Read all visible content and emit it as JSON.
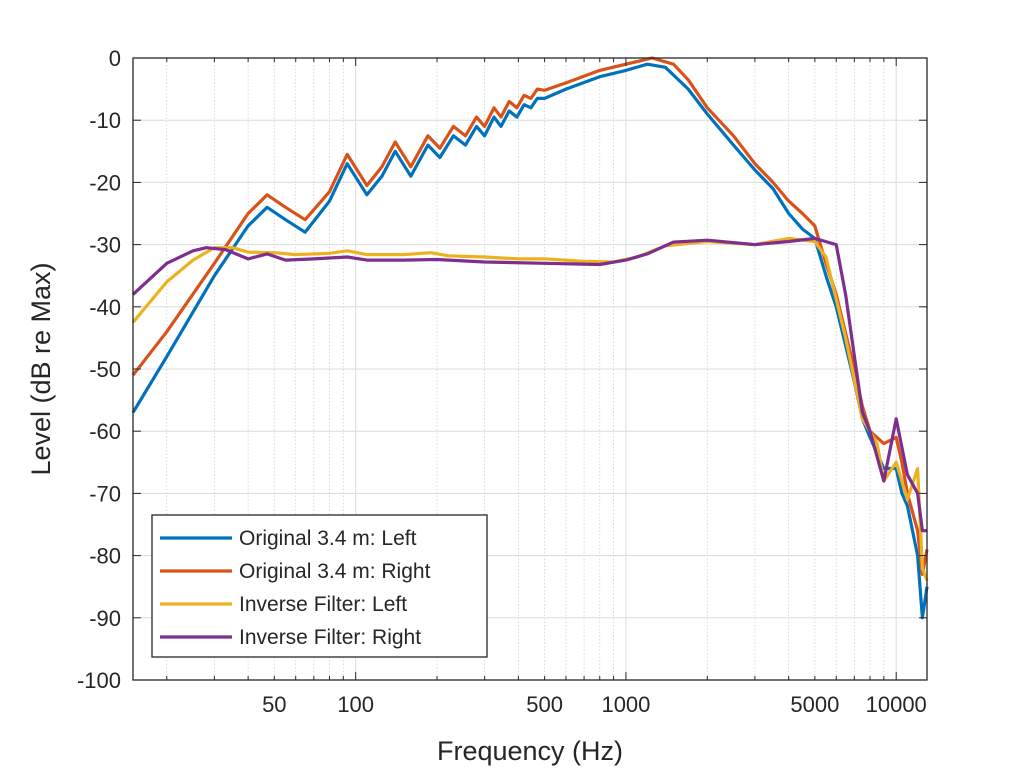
{
  "chart_data": {
    "type": "line",
    "title": "",
    "xlabel": "Frequency (Hz)",
    "ylabel": "Level (dB re Max)",
    "xscale": "log",
    "xlim": [
      15,
      13000
    ],
    "ylim": [
      -100,
      0
    ],
    "xticks": [
      50,
      100,
      500,
      1000,
      5000,
      10000
    ],
    "xtick_labels": [
      "50",
      "100",
      "500",
      "1000",
      "5000",
      "10000"
    ],
    "yticks": [
      0,
      -10,
      -20,
      -30,
      -40,
      -50,
      -60,
      -70,
      -80,
      -90,
      -100
    ],
    "ytick_labels": [
      "0",
      "-10",
      "-20",
      "-30",
      "-40",
      "-50",
      "-60",
      "-70",
      "-80",
      "-90",
      "-100"
    ],
    "grid": true,
    "legend_placement": "bottom-left",
    "series": [
      {
        "name": "Original 3.4 m: Left",
        "color": "#0072BD",
        "points": [
          [
            15,
            -57
          ],
          [
            20,
            -48
          ],
          [
            30,
            -35
          ],
          [
            40,
            -27
          ],
          [
            47,
            -24
          ],
          [
            55,
            -26
          ],
          [
            65,
            -28
          ],
          [
            80,
            -23
          ],
          [
            93,
            -17
          ],
          [
            110,
            -22
          ],
          [
            125,
            -19
          ],
          [
            140,
            -15
          ],
          [
            160,
            -19
          ],
          [
            185,
            -14
          ],
          [
            205,
            -16
          ],
          [
            230,
            -12.5
          ],
          [
            255,
            -14
          ],
          [
            280,
            -11
          ],
          [
            300,
            -12.5
          ],
          [
            325,
            -9.5
          ],
          [
            345,
            -11
          ],
          [
            370,
            -8.5
          ],
          [
            395,
            -9.5
          ],
          [
            420,
            -7.5
          ],
          [
            445,
            -8
          ],
          [
            470,
            -6.5
          ],
          [
            500,
            -6.5
          ],
          [
            600,
            -5
          ],
          [
            800,
            -3
          ],
          [
            1000,
            -2
          ],
          [
            1200,
            -1
          ],
          [
            1400,
            -1.5
          ],
          [
            1700,
            -5
          ],
          [
            2000,
            -9
          ],
          [
            2500,
            -14
          ],
          [
            3000,
            -18
          ],
          [
            3500,
            -21
          ],
          [
            4000,
            -25
          ],
          [
            4500,
            -27.5
          ],
          [
            5000,
            -29
          ],
          [
            5500,
            -35
          ],
          [
            6000,
            -40
          ],
          [
            7000,
            -52
          ],
          [
            7500,
            -58
          ],
          [
            8000,
            -61
          ],
          [
            9000,
            -66
          ],
          [
            10000,
            -66
          ],
          [
            10500,
            -70
          ],
          [
            11000,
            -72
          ],
          [
            12000,
            -80
          ],
          [
            12500,
            -90
          ],
          [
            13000,
            -85
          ]
        ]
      },
      {
        "name": "Original 3.4 m: Right",
        "color": "#D95319",
        "points": [
          [
            15,
            -51
          ],
          [
            20,
            -44
          ],
          [
            30,
            -33
          ],
          [
            40,
            -25
          ],
          [
            47,
            -22
          ],
          [
            55,
            -24
          ],
          [
            65,
            -26
          ],
          [
            80,
            -21.5
          ],
          [
            93,
            -15.5
          ],
          [
            110,
            -20.5
          ],
          [
            125,
            -17.5
          ],
          [
            140,
            -13.5
          ],
          [
            160,
            -17.5
          ],
          [
            185,
            -12.5
          ],
          [
            205,
            -14.5
          ],
          [
            230,
            -11
          ],
          [
            255,
            -12.5
          ],
          [
            280,
            -9.5
          ],
          [
            300,
            -11
          ],
          [
            325,
            -8
          ],
          [
            345,
            -9.5
          ],
          [
            370,
            -7
          ],
          [
            395,
            -8
          ],
          [
            420,
            -6
          ],
          [
            445,
            -6.5
          ],
          [
            470,
            -5
          ],
          [
            500,
            -5.2
          ],
          [
            600,
            -4
          ],
          [
            800,
            -2
          ],
          [
            1000,
            -1
          ],
          [
            1250,
            0
          ],
          [
            1500,
            -1
          ],
          [
            1700,
            -3.5
          ],
          [
            2000,
            -8
          ],
          [
            2500,
            -12.5
          ],
          [
            3000,
            -17
          ],
          [
            3500,
            -20
          ],
          [
            4000,
            -23
          ],
          [
            4500,
            -25
          ],
          [
            5000,
            -27
          ],
          [
            5500,
            -33
          ],
          [
            6000,
            -38
          ],
          [
            7000,
            -50
          ],
          [
            7500,
            -56
          ],
          [
            8000,
            -60
          ],
          [
            9000,
            -62
          ],
          [
            10000,
            -61
          ],
          [
            10500,
            -65
          ],
          [
            11000,
            -70
          ],
          [
            12000,
            -76
          ],
          [
            12500,
            -83
          ],
          [
            13000,
            -79
          ]
        ]
      },
      {
        "name": "Inverse Filter: Left",
        "color": "#EDB120",
        "points": [
          [
            15,
            -42.5
          ],
          [
            20,
            -36
          ],
          [
            25,
            -32.5
          ],
          [
            30,
            -30.5
          ],
          [
            35,
            -30.5
          ],
          [
            40,
            -31.2
          ],
          [
            50,
            -31.3
          ],
          [
            60,
            -31.6
          ],
          [
            80,
            -31.4
          ],
          [
            93,
            -31
          ],
          [
            110,
            -31.6
          ],
          [
            150,
            -31.6
          ],
          [
            190,
            -31.3
          ],
          [
            220,
            -31.8
          ],
          [
            300,
            -32
          ],
          [
            400,
            -32.3
          ],
          [
            500,
            -32.3
          ],
          [
            700,
            -32.7
          ],
          [
            900,
            -32.8
          ],
          [
            1100,
            -32
          ],
          [
            1400,
            -30.2
          ],
          [
            2000,
            -29.5
          ],
          [
            3000,
            -30
          ],
          [
            4000,
            -29
          ],
          [
            5000,
            -29.5
          ],
          [
            5500,
            -32
          ],
          [
            6500,
            -45
          ],
          [
            7500,
            -58
          ],
          [
            8500,
            -62
          ],
          [
            9000,
            -68
          ],
          [
            10000,
            -65
          ],
          [
            11000,
            -71
          ],
          [
            12000,
            -66
          ],
          [
            12500,
            -82
          ],
          [
            13000,
            -84
          ]
        ]
      },
      {
        "name": "Inverse Filter: Right",
        "color": "#7E2F8E",
        "points": [
          [
            15,
            -38
          ],
          [
            20,
            -33
          ],
          [
            25,
            -31
          ],
          [
            28,
            -30.5
          ],
          [
            33,
            -30.8
          ],
          [
            40,
            -32.3
          ],
          [
            47,
            -31.5
          ],
          [
            55,
            -32.5
          ],
          [
            70,
            -32.3
          ],
          [
            93,
            -32
          ],
          [
            110,
            -32.5
          ],
          [
            150,
            -32.5
          ],
          [
            200,
            -32.4
          ],
          [
            300,
            -32.8
          ],
          [
            500,
            -33
          ],
          [
            800,
            -33.2
          ],
          [
            1000,
            -32.5
          ],
          [
            1200,
            -31.5
          ],
          [
            1500,
            -29.6
          ],
          [
            2000,
            -29.3
          ],
          [
            3000,
            -30
          ],
          [
            4000,
            -29.5
          ],
          [
            5000,
            -29
          ],
          [
            6000,
            -30
          ],
          [
            6500,
            -38
          ],
          [
            7500,
            -57
          ],
          [
            8000,
            -60
          ],
          [
            9000,
            -68
          ],
          [
            10000,
            -58
          ],
          [
            11000,
            -67
          ],
          [
            12000,
            -70
          ],
          [
            12500,
            -76
          ],
          [
            13000,
            -76
          ]
        ]
      }
    ]
  }
}
